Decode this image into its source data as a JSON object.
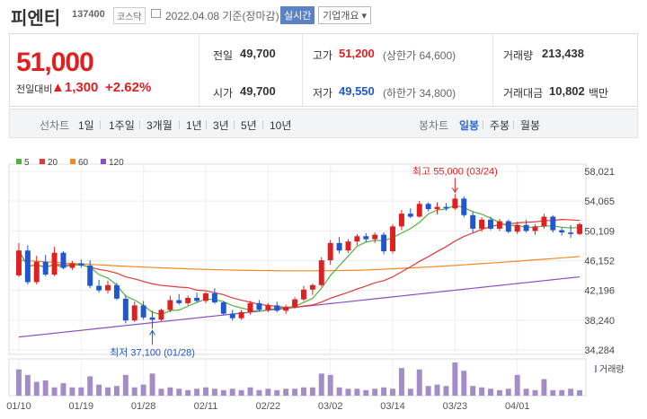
{
  "header": {
    "name": "피엔티",
    "code": "137400",
    "market": "코스닥",
    "date_label": "2022.04.08 기준(장마감)",
    "realtime_label": "실시간",
    "company_label": "기업개요 ▾"
  },
  "summary": {
    "price": "51,000",
    "change_label": "전일대비",
    "change_value": "▲1,300",
    "change_pct": "+2.62%",
    "prev_label": "전일",
    "prev_value": "49,700",
    "open_label": "시가",
    "open_value": "49,700",
    "high_label": "고가",
    "high_value": "51,200",
    "high_limit": "(상한가 64,600)",
    "low_label": "저가",
    "low_value": "49,550",
    "low_limit": "(하한가 34,800)",
    "volume_label": "거래량",
    "volume_value": "213,438",
    "amount_label": "거래대금",
    "amount_value": "10,802",
    "amount_unit": "백만"
  },
  "tabs": {
    "line_label": "선차트",
    "periods": [
      "1일",
      "1주일",
      "3개월",
      "1년",
      "3년",
      "5년",
      "10년"
    ],
    "candle_label": "봉차트",
    "candle_periods": [
      "일봉",
      "주봉",
      "월봉"
    ],
    "selected_candle": "일봉"
  },
  "colors": {
    "up": "#e02020",
    "down": "#2057d0",
    "ma5": "#53b13c",
    "ma20": "#e23a3a",
    "ma60": "#f08a24",
    "ma120": "#8b4fbf",
    "volume": "#a48cc6"
  },
  "chart_data": {
    "type": "candlestick",
    "legend": [
      "5",
      "20",
      "60",
      "120"
    ],
    "y_ticks": [
      "58,021",
      "54,065",
      "50,109",
      "46,152",
      "42,196",
      "38,240",
      "34,284"
    ],
    "ylim": [
      34284,
      58021
    ],
    "x_ticks": [
      "01/10",
      "01/19",
      "01/28",
      "02/11",
      "02/22",
      "03/02",
      "03/14",
      "03/23",
      "04/01"
    ],
    "volume_label": "거래량",
    "annotations": {
      "max": {
        "text": "최고 55,000 (03/24)",
        "index": 49,
        "value": 55000
      },
      "min": {
        "text": "최저 37,100 (01/28)",
        "index": 15,
        "value": 37100
      }
    },
    "candles": [
      [
        44200,
        48500,
        44000,
        47500
      ],
      [
        47500,
        48200,
        43000,
        43300
      ],
      [
        43300,
        46800,
        43000,
        46000
      ],
      [
        46000,
        46900,
        44100,
        44300
      ],
      [
        44300,
        48000,
        44100,
        47200
      ],
      [
        47200,
        47400,
        45000,
        45200
      ],
      [
        45200,
        46100,
        44900,
        45800
      ],
      [
        45800,
        46300,
        45200,
        45500
      ],
      [
        45500,
        46200,
        42500,
        42800
      ],
      [
        42800,
        43600,
        41900,
        42200
      ],
      [
        42200,
        43500,
        41800,
        42900
      ],
      [
        42900,
        43200,
        40900,
        41100
      ],
      [
        41100,
        41600,
        37800,
        38200
      ],
      [
        38200,
        40700,
        38000,
        40200
      ],
      [
        40200,
        40800,
        38300,
        38600
      ],
      [
        38600,
        39500,
        37100,
        38300
      ],
      [
        38300,
        39800,
        38100,
        39600
      ],
      [
        39600,
        41500,
        39300,
        40900
      ],
      [
        40900,
        41700,
        40300,
        40500
      ],
      [
        40500,
        41500,
        40200,
        41200
      ],
      [
        41200,
        41900,
        40600,
        40800
      ],
      [
        40800,
        42000,
        40500,
        41800
      ],
      [
        41800,
        42500,
        40400,
        40600
      ],
      [
        40600,
        40800,
        38900,
        39100
      ],
      [
        39100,
        39600,
        38200,
        38500
      ],
      [
        38500,
        39600,
        38300,
        39300
      ],
      [
        39300,
        40800,
        39000,
        40500
      ],
      [
        40500,
        40900,
        39400,
        39600
      ],
      [
        39600,
        40500,
        39300,
        40200
      ],
      [
        40200,
        40700,
        39300,
        39500
      ],
      [
        39500,
        40300,
        39100,
        40000
      ],
      [
        40000,
        41300,
        39800,
        41000
      ],
      [
        41000,
        42800,
        40800,
        42300
      ],
      [
        42300,
        43100,
        41600,
        42900
      ],
      [
        42900,
        46600,
        42700,
        46200
      ],
      [
        46200,
        48900,
        45600,
        48500
      ],
      [
        48500,
        49300,
        47100,
        47500
      ],
      [
        47500,
        49000,
        47200,
        48700
      ],
      [
        48700,
        49700,
        48200,
        49400
      ],
      [
        49400,
        49800,
        48600,
        49000
      ],
      [
        49000,
        49900,
        48500,
        49600
      ],
      [
        49600,
        49900,
        47000,
        47400
      ],
      [
        47400,
        51000,
        47100,
        50700
      ],
      [
        50700,
        52900,
        50200,
        52400
      ],
      [
        52400,
        53100,
        51800,
        52000
      ],
      [
        52000,
        54100,
        51900,
        53700
      ],
      [
        53700,
        53900,
        52700,
        53000
      ],
      [
        53000,
        53900,
        52300,
        53300
      ],
      [
        53300,
        53800,
        52800,
        53100
      ],
      [
        53100,
        55000,
        52900,
        54400
      ],
      [
        54400,
        54700,
        51900,
        52200
      ],
      [
        52200,
        52600,
        49900,
        50400
      ],
      [
        50400,
        51900,
        50000,
        51600
      ],
      [
        51600,
        52000,
        50200,
        50400
      ],
      [
        50400,
        51700,
        50100,
        51400
      ],
      [
        51400,
        51600,
        49800,
        50000
      ],
      [
        50000,
        51300,
        49700,
        50900
      ],
      [
        50900,
        51600,
        49900,
        50100
      ],
      [
        50100,
        51000,
        49600,
        50700
      ],
      [
        50700,
        52400,
        50400,
        52000
      ],
      [
        52000,
        52200,
        49900,
        50200
      ],
      [
        50200,
        50500,
        49500,
        49900
      ],
      [
        49900,
        50900,
        49200,
        49700
      ],
      [
        49700,
        51200,
        49550,
        51000
      ]
    ],
    "volumes": [
      38,
      30,
      20,
      22,
      12,
      18,
      12,
      12,
      28,
      16,
      12,
      14,
      30,
      12,
      16,
      32,
      10,
      12,
      10,
      8,
      10,
      12,
      10,
      8,
      10,
      8,
      12,
      8,
      10,
      8,
      10,
      10,
      12,
      12,
      32,
      30,
      12,
      10,
      10,
      8,
      10,
      12,
      10,
      40,
      10,
      38,
      14,
      16,
      14,
      48,
      36,
      14,
      12,
      10,
      8,
      10,
      30,
      10,
      8,
      24,
      8,
      8,
      10,
      8
    ]
  }
}
